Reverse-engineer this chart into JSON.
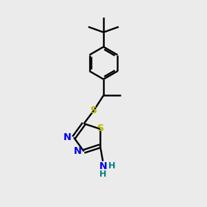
{
  "bg_color": "#ebebeb",
  "bond_color": "#000000",
  "bond_width": 1.8,
  "atom_colors": {
    "S": "#b8b800",
    "N": "#0000ee",
    "H_teal": "#008080",
    "C": "#000000"
  },
  "font_size_S": 10,
  "font_size_N": 10,
  "font_size_H": 9,
  "xlim": [
    -1.2,
    1.4
  ],
  "ylim": [
    -1.6,
    2.2
  ]
}
